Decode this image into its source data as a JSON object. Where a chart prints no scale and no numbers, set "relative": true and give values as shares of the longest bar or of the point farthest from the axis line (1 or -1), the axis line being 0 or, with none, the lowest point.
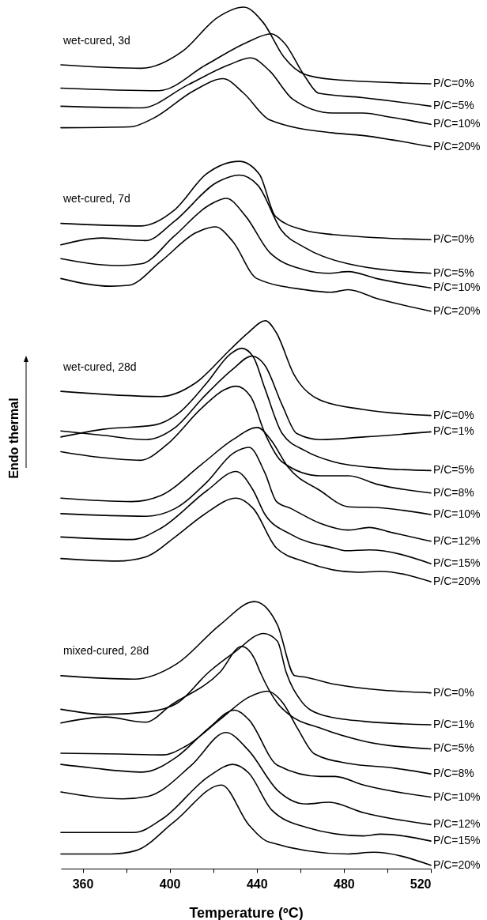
{
  "chart_data": {
    "type": "line",
    "xlabel": "Temperature (ºC)",
    "ylabel": "Endo thermal",
    "relative": true,
    "line_style": "solid",
    "marker": "none",
    "xlim": [
      350,
      520
    ],
    "xticks": [
      360,
      {
        "value": 380,
        "label": null
      },
      400,
      {
        "value": 420,
        "label": null
      },
      440,
      {
        "value": 460,
        "label": null
      },
      480,
      {
        "value": 500,
        "label": null
      },
      520
    ],
    "annotations": [
      "wet-cured, 3d",
      "wet-cured, 7d",
      "wet-cured, 28d",
      "mixed-cured, 28d"
    ],
    "series": [
      {
        "name": "P/C=0%",
        "color": "#000000",
        "x": [
          350,
          387,
          406,
          422,
          434,
          443,
          452.5,
          462,
          475,
          520
        ],
        "values": [
          0.933,
          0.929,
          0.949,
          0.988,
          1.0,
          0.982,
          0.942,
          0.922,
          0.916,
          0.911
        ]
      },
      {
        "name": "P/C=5%",
        "color": "#000000",
        "x": [
          350,
          395,
          416.7,
          435.4,
          446.7,
          452.5,
          462,
          468.5,
          488.6,
          520
        ],
        "values": [
          0.906,
          0.903,
          0.933,
          0.959,
          0.969,
          0.959,
          0.92,
          0.9,
          0.895,
          0.885
        ]
      },
      {
        "name": "P/C=10%",
        "color": "#000000",
        "x": [
          350,
          387,
          408.5,
          427.2,
          437.2,
          445.9,
          456.6,
          475,
          488.6,
          502,
          520
        ],
        "values": [
          0.885,
          0.883,
          0.91,
          0.933,
          0.941,
          0.926,
          0.893,
          0.877,
          0.877,
          0.872,
          0.864
        ]
      },
      {
        "name": "P/C=20%",
        "color": "#000000",
        "x": [
          350,
          381.8,
          392.5,
          411.1,
          424.5,
          434,
          446,
          475,
          488.6,
          502,
          520
        ],
        "values": [
          0.86,
          0.861,
          0.871,
          0.903,
          0.917,
          0.9,
          0.869,
          0.854,
          0.851,
          0.846,
          0.838
        ]
      },
      {
        "name": "P/C=0%",
        "color": "#000000",
        "x": [
          350,
          387,
          402,
          416.7,
          432,
          441.2,
          448.6,
          462,
          475,
          520
        ],
        "values": [
          0.749,
          0.746,
          0.764,
          0.806,
          0.821,
          0.806,
          0.757,
          0.741,
          0.736,
          0.73
        ]
      },
      {
        "name": "P/C=5%",
        "color": "#000000",
        "x": [
          350,
          369,
          389,
          402,
          422,
          432,
          440.6,
          451.3,
          462,
          482,
          520
        ],
        "values": [
          0.724,
          0.732,
          0.729,
          0.751,
          0.797,
          0.805,
          0.793,
          0.741,
          0.721,
          0.702,
          0.691
        ]
      },
      {
        "name": "P/C=10%",
        "color": "#000000",
        "x": [
          350,
          376,
          387,
          402,
          418,
          426,
          435,
          446,
          462,
          473,
          482,
          495,
          520
        ],
        "values": [
          0.708,
          0.7,
          0.702,
          0.734,
          0.77,
          0.778,
          0.757,
          0.715,
          0.695,
          0.691,
          0.693,
          0.685,
          0.674
        ]
      },
      {
        "name": "P/C=20%",
        "color": "#000000",
        "x": [
          350,
          373,
          381,
          396,
          412,
          421,
          429,
          440,
          462,
          474,
          482,
          495,
          520
        ],
        "values": [
          0.685,
          0.676,
          0.677,
          0.705,
          0.738,
          0.745,
          0.728,
          0.685,
          0.672,
          0.669,
          0.672,
          0.662,
          0.647
        ]
      },
      {
        "name": "P/C=0%",
        "color": "#000000",
        "x": [
          350,
          396,
          412,
          428,
          436,
          444,
          449,
          457,
          469,
          488.6,
          520
        ],
        "values": [
          0.554,
          0.548,
          0.564,
          0.603,
          0.622,
          0.636,
          0.622,
          0.574,
          0.544,
          0.533,
          0.526
        ]
      },
      {
        "name": "P/C=1%",
        "color": "#000000",
        "x": [
          350,
          369.3,
          389.2,
          402.5,
          415.8,
          429.1,
          437.8,
          443.8,
          451.7,
          458.4,
          469,
          489,
          520
        ],
        "values": [
          0.508,
          0.503,
          0.498,
          0.512,
          0.548,
          0.58,
          0.595,
          0.584,
          0.538,
          0.505,
          0.498,
          0.501,
          0.507
        ]
      },
      {
        "name": "P/C=5%",
        "color": "#000000",
        "x": [
          350,
          369.3,
          393.2,
          403.8,
          417.1,
          427.7,
          433.1,
          438.4,
          443.8,
          451.7,
          462.3,
          475.6,
          495.5,
          520
        ],
        "values": [
          0.501,
          0.51,
          0.515,
          0.528,
          0.564,
          0.597,
          0.604,
          0.594,
          0.557,
          0.505,
          0.485,
          0.472,
          0.465,
          0.462
        ]
      },
      {
        "name": "P/C=8%",
        "color": "#000000",
        "x": [
          350,
          369.3,
          386.6,
          398.6,
          414.5,
          425.2,
          430.5,
          437.2,
          443.8,
          451.7,
          469,
          482.3,
          495.5,
          520
        ],
        "values": [
          0.484,
          0.477,
          0.474,
          0.492,
          0.534,
          0.556,
          0.56,
          0.548,
          0.505,
          0.472,
          0.456,
          0.456,
          0.446,
          0.436
        ]
      },
      {
        "name": "P/C=10%",
        "color": "#000000",
        "x": [
          350,
          382.6,
          395.9,
          414.5,
          429.1,
          440.4,
          446.4,
          454.4,
          469,
          482.3,
          495.6,
          520
        ],
        "values": [
          0.43,
          0.426,
          0.433,
          0.469,
          0.498,
          0.512,
          0.498,
          0.466,
          0.439,
          0.42,
          0.419,
          0.411
        ]
      },
      {
        "name": "P/C=12%",
        "color": "#000000",
        "x": [
          350,
          389.2,
          402.5,
          417.2,
          429.1,
          436.5,
          443.8,
          449.1,
          455.7,
          469,
          482.3,
          491.6,
          502.3,
          520
        ],
        "values": [
          0.412,
          0.409,
          0.418,
          0.449,
          0.482,
          0.489,
          0.459,
          0.426,
          0.418,
          0.401,
          0.393,
          0.396,
          0.39,
          0.38
        ]
      },
      {
        "name": "P/C=15%",
        "color": "#000000",
        "x": [
          350,
          382.6,
          395.9,
          417.2,
          430.5,
          438.4,
          443.8,
          455.7,
          475.7,
          481,
          491.6,
          520
        ],
        "values": [
          0.385,
          0.382,
          0.395,
          0.439,
          0.461,
          0.439,
          0.411,
          0.388,
          0.372,
          0.369,
          0.37,
          0.354
        ]
      },
      {
        "name": "P/C=20%",
        "color": "#000000",
        "x": [
          350,
          375.9,
          389.2,
          402.5,
          415.8,
          430.5,
          438.4,
          449.1,
          462.4,
          486.3,
          496.9,
          520
        ],
        "values": [
          0.36,
          0.357,
          0.362,
          0.385,
          0.411,
          0.43,
          0.418,
          0.372,
          0.356,
          0.344,
          0.345,
          0.333
        ]
      },
      {
        "name": "P/C=0%",
        "color": "#000000",
        "x": [
          350,
          383.6,
          403.4,
          423.1,
          439,
          449.5,
          457.4,
          462.7,
          475.9,
          520
        ],
        "values": [
          0.224,
          0.22,
          0.238,
          0.283,
          0.31,
          0.283,
          0.224,
          0.222,
          0.214,
          0.204
        ]
      },
      {
        "name": "P/C=1%",
        "color": "#000000",
        "x": [
          350,
          370.4,
          390.2,
          403.4,
          417.9,
          429.7,
          443.2,
          449.5,
          453.5,
          460,
          469.3,
          489.1,
          520
        ],
        "values": [
          0.185,
          0.179,
          0.182,
          0.192,
          0.228,
          0.251,
          0.273,
          0.264,
          0.228,
          0.196,
          0.179,
          0.171,
          0.167
        ]
      },
      {
        "name": "P/C=5%",
        "color": "#000000",
        "x": [
          350,
          370.4,
          388.9,
          400.7,
          423.1,
          433,
          438.9,
          441.6,
          449.5,
          454.8,
          469.3,
          489.1,
          520
        ],
        "values": [
          0.169,
          0.176,
          0.17,
          0.19,
          0.228,
          0.258,
          0.244,
          0.228,
          0.192,
          0.179,
          0.163,
          0.148,
          0.139
        ]
      },
      {
        "name": "P/C=8%",
        "color": "#000000",
        "x": [
          350,
          377,
          396.8,
          407.3,
          423.1,
          436.3,
          444.9,
          452.1,
          458.7,
          466.6,
          482.5,
          502.2,
          520
        ],
        "values": [
          0.134,
          0.133,
          0.132,
          0.142,
          0.173,
          0.199,
          0.206,
          0.192,
          0.163,
          0.133,
          0.122,
          0.117,
          0.11
        ]
      },
      {
        "name": "P/C=10%",
        "color": "#000000",
        "x": [
          350,
          363.8,
          387.6,
          403.4,
          417.9,
          429.7,
          436.3,
          449.5,
          469.3,
          475.9,
          489.1,
          520
        ],
        "values": [
          0.121,
          0.117,
          0.112,
          0.13,
          0.163,
          0.184,
          0.173,
          0.12,
          0.107,
          0.107,
          0.097,
          0.083
        ]
      },
      {
        "name": "P/C=12%",
        "color": "#000000",
        "x": [
          350,
          378.3,
          390.2,
          410,
          425.8,
          436.3,
          449.5,
          462.7,
          473.2,
          489.1,
          520
        ],
        "values": [
          0.089,
          0.081,
          0.084,
          0.12,
          0.158,
          0.137,
          0.091,
          0.075,
          0.077,
          0.065,
          0.051
        ]
      },
      {
        "name": "P/C=15%",
        "color": "#000000",
        "x": [
          350,
          383.6,
          396.8,
          417.9,
          429.1,
          436.3,
          446.9,
          462.7,
          489.1,
          497,
          520
        ],
        "values": [
          0.042,
          0.042,
          0.058,
          0.107,
          0.121,
          0.111,
          0.068,
          0.048,
          0.038,
          0.04,
          0.032
        ]
      },
      {
        "name": "P/C=20%",
        "color": "#000000",
        "x": [
          350,
          372.9,
          384.5,
          401.9,
          423.8,
          436.3,
          445.5,
          481.8,
          493.5,
          520
        ],
        "values": [
          0.017,
          0.017,
          0.021,
          0.054,
          0.097,
          0.051,
          0.031,
          0.017,
          0.019,
          0.004
        ]
      }
    ]
  }
}
